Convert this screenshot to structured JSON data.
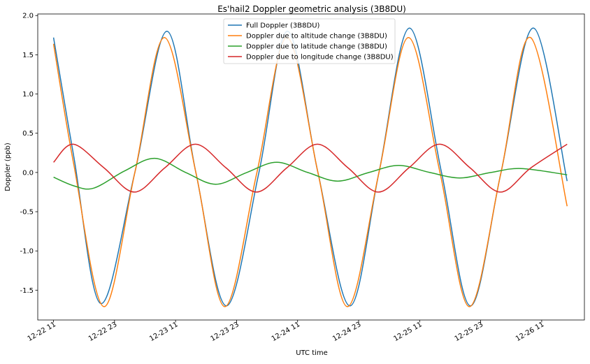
{
  "chart_data": {
    "type": "line",
    "title": "Es'hail2 Doppler geometric analysis (3B8DU)",
    "xlabel": "UTC time",
    "ylabel": "Doppler (ppb)",
    "ylim": [
      -1.88,
      2.02
    ],
    "xlim_hours": [
      -3.1,
      104.4
    ],
    "x_unit": "hours since 12-22 11 UTC",
    "x_range_shown": [
      "12-22 08",
      "12-26 19"
    ],
    "yticks": [
      -1.5,
      -1.0,
      -0.5,
      0.0,
      0.5,
      1.0,
      1.5,
      2.0
    ],
    "ytick_labels": [
      "-1.5",
      "-1.0",
      "-0.5",
      "0.0",
      "0.5",
      "1.0",
      "1.5",
      "2.0"
    ],
    "xticks_hours": [
      0,
      12,
      24,
      36,
      48,
      60,
      72,
      84,
      96
    ],
    "xtick_labels": [
      "12-22 11",
      "12-22 23",
      "12-23 11",
      "12-23 23",
      "12-24 11",
      "12-24 23",
      "12-25 11",
      "12-25 23",
      "12-26 11"
    ],
    "grid": false,
    "legend_position": "top-center",
    "series": [
      {
        "name": "Full Doppler (3B8DU)",
        "color": "#1f77b4",
        "x": [
          0,
          4,
          9.3,
          16,
          22.3,
          28,
          34,
          40.4,
          46,
          52,
          58.3,
          64,
          70,
          76.3,
          82,
          88,
          94.4,
          101
        ],
        "y": [
          1.72,
          0.2,
          -1.67,
          0.0,
          1.8,
          0.0,
          -1.7,
          0.0,
          1.8,
          0.0,
          -1.7,
          0.0,
          1.84,
          0.0,
          -1.7,
          0.0,
          1.84,
          -0.11
        ]
      },
      {
        "name": "Doppler due to altitude change (3B8DU)",
        "color": "#ff7f0e",
        "x": [
          0,
          4,
          9.9,
          16,
          21.8,
          28,
          33.7,
          40,
          45.9,
          52,
          57.8,
          64,
          69.8,
          76,
          81.8,
          88,
          93.8,
          101
        ],
        "y": [
          1.64,
          0.1,
          -1.71,
          0.0,
          1.72,
          0.0,
          -1.71,
          0.0,
          1.72,
          0.0,
          -1.71,
          0.0,
          1.72,
          0.0,
          -1.71,
          0.0,
          1.72,
          -0.43
        ]
      },
      {
        "name": "Doppler due to latitude change (3B8DU)",
        "color": "#2ca02c",
        "x": [
          0,
          4,
          7.9,
          14,
          19.9,
          26,
          31.9,
          38,
          43.9,
          50,
          55.9,
          62,
          67.9,
          74,
          79.9,
          86,
          91.9,
          101
        ],
        "y": [
          -0.06,
          -0.17,
          -0.2,
          0.02,
          0.18,
          0.0,
          -0.15,
          0.0,
          0.13,
          0.0,
          -0.11,
          0.0,
          0.09,
          0.0,
          -0.07,
          0.0,
          0.05,
          -0.03
        ]
      },
      {
        "name": "Doppler due to longitude change (3B8DU)",
        "color": "#d62728",
        "x": [
          0,
          3.9,
          9.9,
          15.9,
          21.9,
          27.9,
          33.9,
          39.9,
          45.9,
          51.9,
          57.9,
          63.9,
          69.9,
          75.9,
          81.9,
          87.9,
          93.9,
          101
        ],
        "y": [
          0.13,
          0.36,
          0.06,
          -0.25,
          0.06,
          0.36,
          0.06,
          -0.25,
          0.06,
          0.36,
          0.06,
          -0.25,
          0.06,
          0.36,
          0.06,
          -0.25,
          0.06,
          0.36
        ]
      }
    ]
  }
}
